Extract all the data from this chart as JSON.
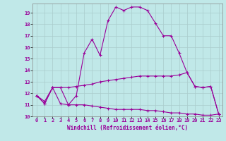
{
  "xlabel": "Windchill (Refroidissement éolien,°C)",
  "bg_color": "#c0e8e8",
  "line_color": "#990099",
  "grid_color": "#aacccc",
  "hours": [
    0,
    1,
    2,
    3,
    4,
    5,
    6,
    7,
    8,
    9,
    10,
    11,
    12,
    13,
    14,
    15,
    16,
    17,
    18,
    19,
    20,
    21,
    22,
    23
  ],
  "curve_temp": [
    11.8,
    11.1,
    12.5,
    11.1,
    11.0,
    11.8,
    15.5,
    16.7,
    15.3,
    18.3,
    19.5,
    19.2,
    19.5,
    19.5,
    19.2,
    18.1,
    17.0,
    17.0,
    15.5,
    13.8,
    12.6,
    12.5,
    12.6,
    10.2
  ],
  "curve_mid": [
    11.8,
    11.3,
    12.5,
    12.5,
    12.5,
    12.6,
    12.7,
    12.8,
    13.0,
    13.1,
    13.2,
    13.3,
    13.4,
    13.5,
    13.5,
    13.5,
    13.5,
    13.5,
    13.6,
    13.8,
    12.6,
    12.5,
    12.6,
    10.2
  ],
  "curve_low": [
    11.8,
    11.1,
    12.5,
    12.5,
    11.0,
    11.0,
    11.0,
    10.9,
    10.8,
    10.7,
    10.6,
    10.6,
    10.6,
    10.6,
    10.5,
    10.5,
    10.4,
    10.3,
    10.3,
    10.2,
    10.2,
    10.1,
    10.1,
    10.2
  ],
  "ylim": [
    10,
    19.8
  ],
  "yticks": [
    10,
    11,
    12,
    13,
    14,
    15,
    16,
    17,
    18,
    19
  ],
  "xticks": [
    0,
    1,
    2,
    3,
    4,
    5,
    6,
    7,
    8,
    9,
    10,
    11,
    12,
    13,
    14,
    15,
    16,
    17,
    18,
    19,
    20,
    21,
    22,
    23
  ],
  "tick_fontsize": 5.0,
  "xlabel_fontsize": 5.5
}
